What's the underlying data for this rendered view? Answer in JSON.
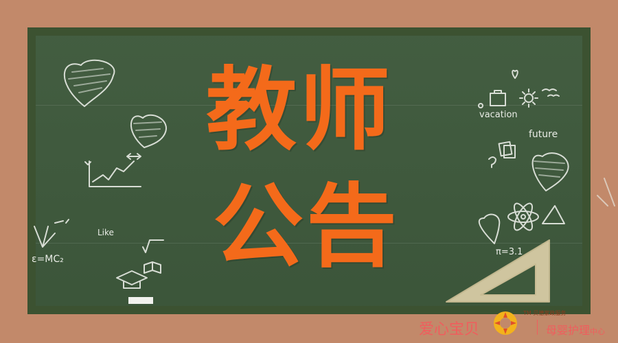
{
  "title": {
    "line1": "教师",
    "line2": "公告"
  },
  "doodles": {
    "vacation": "vacation",
    "future": "future",
    "like": "Like",
    "formula": "ε=MC₂",
    "pi": "π=3.1"
  },
  "footer": {
    "brand_left": "爱心宝贝",
    "brand_right": "母婴护理",
    "brand_right_small": "中心",
    "tagline": "TM 贝德家政服务"
  },
  "colors": {
    "title": "#f46a1a",
    "board": "#3f5a3d",
    "frame": "#3c5231",
    "background": "#c2896a",
    "brand": "#f05d5d"
  }
}
